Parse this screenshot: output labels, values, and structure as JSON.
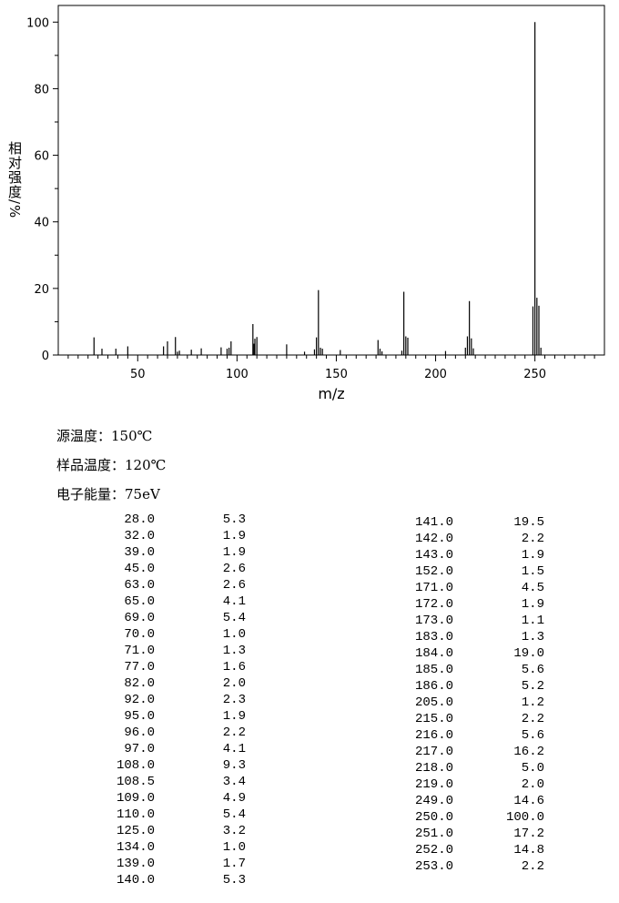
{
  "chart_data": {
    "type": "stick",
    "x_label": "m/z",
    "y_label": "相对强度/%",
    "color": "#000000",
    "x": [
      28,
      32,
      39,
      45,
      63,
      65,
      69,
      70,
      71,
      77,
      82,
      92,
      95,
      96,
      97,
      108,
      108.5,
      109,
      110,
      125,
      134,
      139,
      140,
      141,
      142,
      143,
      152,
      171,
      172,
      173,
      183,
      184,
      185,
      186,
      205,
      215,
      216,
      217,
      218,
      219,
      249,
      250,
      251,
      252,
      253
    ],
    "values": [
      5.3,
      1.9,
      1.9,
      2.6,
      2.6,
      4.1,
      5.4,
      1.0,
      1.3,
      1.6,
      2.0,
      2.3,
      1.9,
      2.2,
      4.1,
      9.3,
      3.4,
      4.9,
      5.4,
      3.2,
      1.0,
      1.7,
      5.3,
      19.5,
      2.2,
      1.9,
      1.5,
      4.5,
      1.9,
      1.1,
      1.3,
      19.0,
      5.6,
      5.2,
      1.2,
      2.2,
      5.6,
      16.2,
      5.0,
      2.0,
      14.6,
      100.0,
      17.2,
      14.8,
      2.2
    ],
    "xlim": [
      10,
      285
    ],
    "xticks": [
      50,
      100,
      150,
      200,
      250
    ],
    "xminorticks": [
      15,
      20,
      25,
      30,
      35,
      40,
      45,
      55,
      60,
      65,
      70,
      75,
      80,
      85,
      90,
      95,
      105,
      110,
      115,
      120,
      125,
      130,
      135,
      140,
      145,
      155,
      160,
      165,
      170,
      175,
      180,
      185,
      190,
      195,
      205,
      210,
      215,
      220,
      225,
      230,
      235,
      240,
      245,
      255,
      260,
      265,
      270,
      275,
      280
    ],
    "ylim": [
      0,
      105
    ],
    "yticks": [
      0,
      20,
      40,
      60,
      80,
      100
    ],
    "yminorticks": [
      10,
      30,
      50,
      70,
      90
    ]
  },
  "info": [
    "源温度：150℃",
    "样品温度：120℃",
    "电子能量：75eV"
  ],
  "table": {
    "left": [
      [
        "28.0",
        "5.3"
      ],
      [
        "32.0",
        "1.9"
      ],
      [
        "39.0",
        "1.9"
      ],
      [
        "45.0",
        "2.6"
      ],
      [
        "63.0",
        "2.6"
      ],
      [
        "65.0",
        "4.1"
      ],
      [
        "69.0",
        "5.4"
      ],
      [
        "70.0",
        "1.0"
      ],
      [
        "71.0",
        "1.3"
      ],
      [
        "77.0",
        "1.6"
      ],
      [
        "82.0",
        "2.0"
      ],
      [
        "92.0",
        "2.3"
      ],
      [
        "95.0",
        "1.9"
      ],
      [
        "96.0",
        "2.2"
      ],
      [
        "97.0",
        "4.1"
      ],
      [
        "108.0",
        "9.3"
      ],
      [
        "108.5",
        "3.4"
      ],
      [
        "109.0",
        "4.9"
      ],
      [
        "110.0",
        "5.4"
      ],
      [
        "125.0",
        "3.2"
      ],
      [
        "134.0",
        "1.0"
      ],
      [
        "139.0",
        "1.7"
      ],
      [
        "140.0",
        "5.3"
      ]
    ],
    "right": [
      [
        "141.0",
        "19.5"
      ],
      [
        "142.0",
        "2.2"
      ],
      [
        "143.0",
        "1.9"
      ],
      [
        "152.0",
        "1.5"
      ],
      [
        "171.0",
        "4.5"
      ],
      [
        "172.0",
        "1.9"
      ],
      [
        "173.0",
        "1.1"
      ],
      [
        "183.0",
        "1.3"
      ],
      [
        "184.0",
        "19.0"
      ],
      [
        "185.0",
        "5.6"
      ],
      [
        "186.0",
        "5.2"
      ],
      [
        "205.0",
        "1.2"
      ],
      [
        "215.0",
        "2.2"
      ],
      [
        "216.0",
        "5.6"
      ],
      [
        "217.0",
        "16.2"
      ],
      [
        "218.0",
        "5.0"
      ],
      [
        "219.0",
        "2.0"
      ],
      [
        "249.0",
        "14.6"
      ],
      [
        "250.0",
        "100.0"
      ],
      [
        "251.0",
        "17.2"
      ],
      [
        "252.0",
        "14.8"
      ],
      [
        "253.0",
        "2.2"
      ]
    ]
  }
}
